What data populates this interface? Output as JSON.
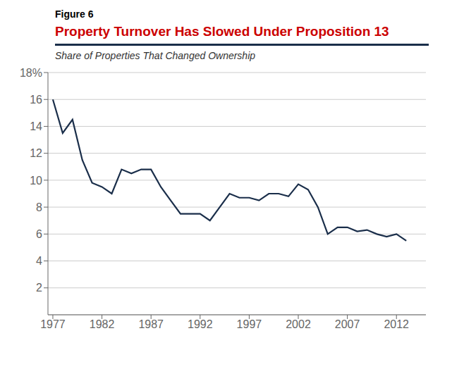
{
  "chart_data": {
    "type": "line",
    "title": "Property Turnover Has Slowed Under Proposition 13",
    "subtitle": "Share of Properties That Changed Ownership",
    "annotations": [
      "Figure 6"
    ],
    "x": [
      1977,
      1978,
      1979,
      1980,
      1981,
      1982,
      1983,
      1984,
      1985,
      1986,
      1987,
      1988,
      1989,
      1990,
      1991,
      1992,
      1993,
      1994,
      1995,
      1996,
      1997,
      1998,
      1999,
      2000,
      2001,
      2002,
      2003,
      2004,
      2005,
      2006,
      2007,
      2008,
      2009,
      2010,
      2011,
      2012,
      2013
    ],
    "values": [
      16.0,
      13.5,
      14.5,
      11.5,
      9.8,
      9.5,
      9.0,
      10.8,
      10.5,
      10.8,
      10.8,
      9.5,
      8.5,
      7.5,
      7.5,
      7.5,
      7.0,
      8.0,
      9.0,
      8.7,
      8.7,
      8.5,
      9.0,
      9.0,
      8.8,
      9.7,
      9.3,
      8.0,
      6.0,
      6.5,
      6.5,
      6.2,
      6.3,
      6.0,
      5.8,
      6.0,
      5.5
    ],
    "color": "#1a2e4a",
    "xlim": [
      1976.5,
      2015
    ],
    "xticks": [
      1977,
      1982,
      1987,
      1992,
      1997,
      2002,
      2007,
      2012
    ],
    "ylim": [
      0,
      18
    ],
    "yticks": [
      2,
      4,
      6,
      8,
      10,
      12,
      14,
      16,
      {
        "value": 18,
        "label": "18%"
      }
    ],
    "grid": true
  }
}
